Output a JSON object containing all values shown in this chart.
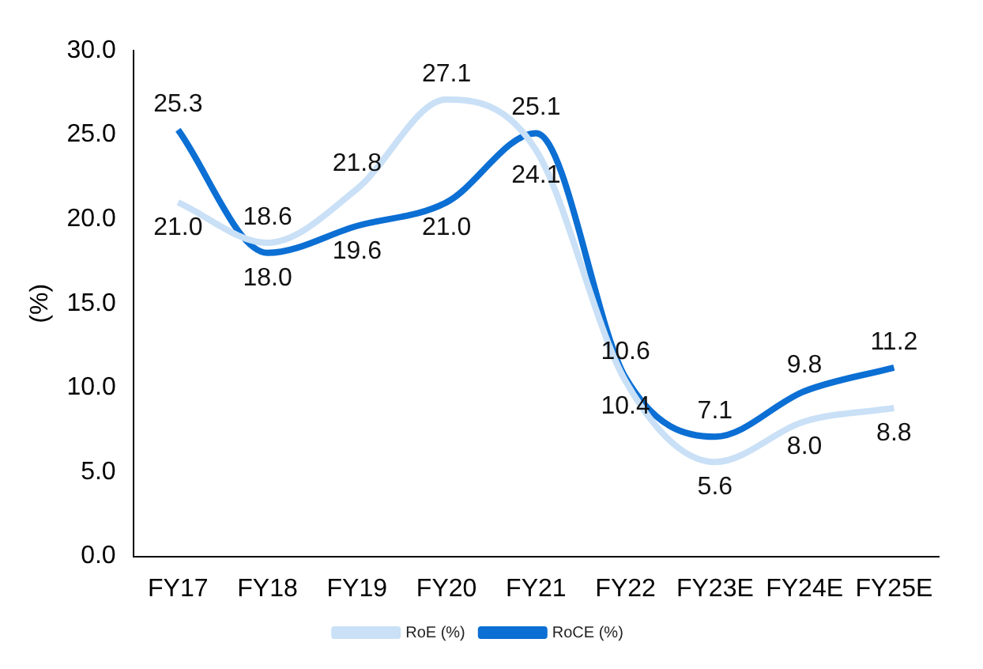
{
  "chart_data": {
    "type": "line",
    "ylabel": "(%)",
    "categories": [
      "FY17",
      "FY18",
      "FY19",
      "FY20",
      "FY21",
      "FY22",
      "FY23E",
      "FY24E",
      "FY25E"
    ],
    "series": [
      {
        "name": "RoE (%)",
        "color": "#c9e0f6",
        "values": [
          21.0,
          18.6,
          21.8,
          27.1,
          24.1,
          10.4,
          5.6,
          8.0,
          8.8
        ],
        "value_labels": [
          "21.0",
          "18.6",
          "21.8",
          "27.1",
          "24.1",
          "10.4",
          "5.6",
          "8.0",
          "8.8"
        ]
      },
      {
        "name": "RoCE (%)",
        "color": "#0b6fd4",
        "values": [
          25.3,
          18.0,
          19.6,
          21.0,
          25.1,
          10.6,
          7.1,
          9.8,
          11.2
        ],
        "value_labels": [
          "25.3",
          "18.0",
          "19.6",
          "21.0",
          "25.1",
          "10.6",
          "7.1",
          "9.8",
          "11.2"
        ]
      }
    ],
    "ylim": [
      0,
      30
    ],
    "yticks": [
      {
        "value": 0,
        "label": "0.0"
      },
      {
        "value": 5,
        "label": "5.0"
      },
      {
        "value": 10,
        "label": "10.0"
      },
      {
        "value": 15,
        "label": "15.0"
      },
      {
        "value": 20,
        "label": "20.0"
      },
      {
        "value": 25,
        "label": "25.0"
      },
      {
        "value": 30,
        "label": "30.0"
      }
    ],
    "grid": false,
    "legend": "bottom",
    "marker": "none",
    "line_style": "solid"
  }
}
